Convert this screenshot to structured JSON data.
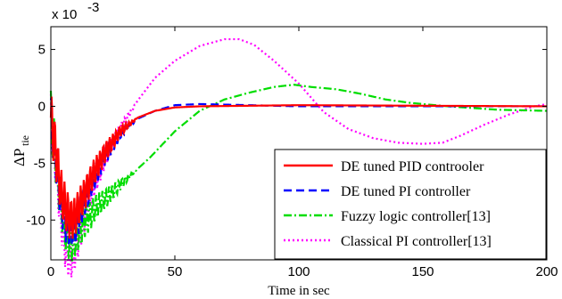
{
  "chart_data": {
    "type": "line",
    "title": "",
    "exponent_label": "x 10",
    "exponent_power": "-3",
    "xlabel": "Time in sec",
    "ylabel_main": "ΔP",
    "ylabel_sub": "tie",
    "xlim": [
      0,
      200
    ],
    "ylim": [
      -13.5,
      7
    ],
    "xticks": [
      0,
      50,
      100,
      150,
      200
    ],
    "yticks": [
      5,
      0,
      -5,
      -10
    ],
    "xtick_labels": [
      "0",
      "50",
      "100",
      "150",
      "200"
    ],
    "ytick_labels": [
      "5",
      "0",
      "-5",
      "-10"
    ],
    "grid": false,
    "legend_position": "bottom-right",
    "series": [
      {
        "name": "DE tuned PID controoler",
        "color": "#ff0000",
        "dash": "solid",
        "envelope": [
          [
            0,
            -1
          ],
          [
            2,
            -4
          ],
          [
            4,
            -7.5
          ],
          [
            6,
            -9
          ],
          [
            8,
            -10
          ],
          [
            10,
            -9.6
          ],
          [
            13,
            -8
          ],
          [
            17,
            -6
          ],
          [
            22,
            -4
          ],
          [
            28,
            -2.2
          ],
          [
            35,
            -1
          ],
          [
            42,
            -0.4
          ],
          [
            50,
            -0.1
          ],
          [
            60,
            0
          ],
          [
            100,
            0.1
          ],
          [
            200,
            0
          ]
        ]
      },
      {
        "name": "DE tuned PI controller",
        "color": "#0000ff",
        "dash": "dashed",
        "envelope": [
          [
            0,
            -1
          ],
          [
            2,
            -4.5
          ],
          [
            4,
            -8
          ],
          [
            6,
            -10
          ],
          [
            8,
            -10.8
          ],
          [
            10,
            -10.4
          ],
          [
            13,
            -8.5
          ],
          [
            17,
            -6.5
          ],
          [
            22,
            -4.3
          ],
          [
            28,
            -2.4
          ],
          [
            35,
            -1.1
          ],
          [
            42,
            -0.4
          ],
          [
            50,
            0.1
          ],
          [
            60,
            0.2
          ],
          [
            100,
            0
          ],
          [
            200,
            0
          ]
        ]
      },
      {
        "name": "Fuzzy logic controller[13]",
        "color": "#00dd00",
        "dash": "dashdot",
        "envelope": [
          [
            0,
            -1
          ],
          [
            2,
            -4.5
          ],
          [
            4,
            -8.5
          ],
          [
            6,
            -11
          ],
          [
            8,
            -12
          ],
          [
            10,
            -11.5
          ],
          [
            14,
            -10
          ],
          [
            20,
            -8.5
          ],
          [
            30,
            -6.5
          ],
          [
            40,
            -4.5
          ],
          [
            50,
            -2.2
          ],
          [
            60,
            -0.4
          ],
          [
            70,
            0.6
          ],
          [
            80,
            1.2
          ],
          [
            90,
            1.7
          ],
          [
            98,
            1.9
          ],
          [
            105,
            1.7
          ],
          [
            115,
            1.5
          ],
          [
            125,
            1.1
          ],
          [
            135,
            0.6
          ],
          [
            145,
            0.3
          ],
          [
            160,
            0
          ],
          [
            180,
            -0.3
          ],
          [
            200,
            -0.4
          ]
        ]
      },
      {
        "name": "Classical PI controller[13]",
        "color": "#ff00ff",
        "dash": "dotted",
        "envelope": [
          [
            0,
            -1
          ],
          [
            2,
            -5
          ],
          [
            4,
            -9.5
          ],
          [
            6,
            -12.5
          ],
          [
            8,
            -13.5
          ],
          [
            10,
            -12.5
          ],
          [
            13,
            -10
          ],
          [
            17,
            -7
          ],
          [
            22,
            -4.5
          ],
          [
            28,
            -2
          ],
          [
            35,
            0.5
          ],
          [
            42,
            2.5
          ],
          [
            50,
            4
          ],
          [
            60,
            5.3
          ],
          [
            70,
            5.9
          ],
          [
            76,
            5.9
          ],
          [
            82,
            5.4
          ],
          [
            90,
            4
          ],
          [
            100,
            2
          ],
          [
            110,
            -0.5
          ],
          [
            120,
            -2
          ],
          [
            130,
            -2.8
          ],
          [
            140,
            -3.2
          ],
          [
            150,
            -3.3
          ],
          [
            158,
            -3.2
          ],
          [
            165,
            -2.6
          ],
          [
            175,
            -1.6
          ],
          [
            185,
            -0.7
          ],
          [
            195,
            0
          ],
          [
            200,
            0.2
          ]
        ]
      }
    ]
  }
}
